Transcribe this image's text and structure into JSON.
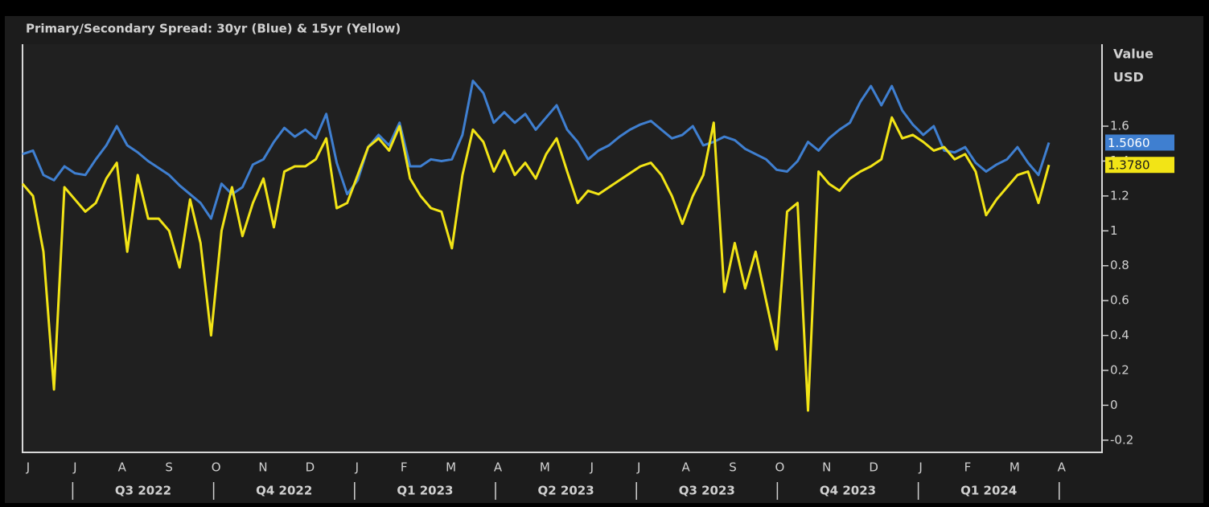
{
  "chart_data": {
    "type": "line",
    "title": "Primary/Secondary Spread: 30yr (Blue) & 15yr (Yellow)",
    "y_axis_label": [
      "Value",
      "USD"
    ],
    "month_labels": [
      "J",
      "J",
      "A",
      "S",
      "O",
      "N",
      "D",
      "J",
      "F",
      "M",
      "A",
      "M",
      "J",
      "J",
      "A",
      "S",
      "O",
      "N",
      "D",
      "J",
      "F",
      "M",
      "A"
    ],
    "quarter_labels": [
      "Q3 2022",
      "Q4 2022",
      "Q1 2023",
      "Q2 2023",
      "Q3 2023",
      "Q4 2023",
      "Q1 2024"
    ],
    "ylim": [
      -0.27,
      2.07
    ],
    "yticks": [
      -0.2,
      0,
      0.2,
      0.4,
      0.6,
      0.8,
      1,
      1.2,
      1.4,
      1.6
    ],
    "grid": false,
    "series": [
      {
        "name": "30yr",
        "color": "#3f7fd0",
        "last_label": "1.5060",
        "values": [
          1.44,
          1.46,
          1.32,
          1.29,
          1.37,
          1.33,
          1.32,
          1.41,
          1.49,
          1.6,
          1.49,
          1.45,
          1.4,
          1.36,
          1.32,
          1.26,
          1.21,
          1.16,
          1.07,
          1.27,
          1.21,
          1.25,
          1.38,
          1.41,
          1.51,
          1.59,
          1.54,
          1.58,
          1.53,
          1.67,
          1.39,
          1.21,
          1.29,
          1.48,
          1.55,
          1.49,
          1.62,
          1.37,
          1.37,
          1.41,
          1.4,
          1.41,
          1.55,
          1.86,
          1.79,
          1.62,
          1.68,
          1.62,
          1.67,
          1.58,
          1.65,
          1.72,
          1.58,
          1.51,
          1.41,
          1.46,
          1.49,
          1.54,
          1.58,
          1.61,
          1.63,
          1.58,
          1.53,
          1.55,
          1.6,
          1.49,
          1.51,
          1.54,
          1.52,
          1.47,
          1.44,
          1.41,
          1.35,
          1.34,
          1.4,
          1.51,
          1.46,
          1.53,
          1.58,
          1.62,
          1.74,
          1.83,
          1.72,
          1.83,
          1.69,
          1.61,
          1.55,
          1.6,
          1.46,
          1.45,
          1.48,
          1.39,
          1.34,
          1.38,
          1.41,
          1.48,
          1.39,
          1.32,
          1.506
        ]
      },
      {
        "name": "15yr",
        "color": "#f2e416",
        "last_label": "1.3780",
        "values": [
          1.27,
          1.2,
          0.88,
          0.09,
          1.25,
          1.18,
          1.11,
          1.16,
          1.3,
          1.39,
          0.88,
          1.32,
          1.07,
          1.07,
          1.0,
          0.79,
          1.18,
          0.93,
          0.4,
          1.0,
          1.25,
          0.97,
          1.16,
          1.3,
          1.02,
          1.34,
          1.37,
          1.37,
          1.41,
          1.53,
          1.13,
          1.16,
          1.32,
          1.48,
          1.53,
          1.46,
          1.6,
          1.3,
          1.2,
          1.13,
          1.11,
          0.9,
          1.32,
          1.58,
          1.51,
          1.34,
          1.46,
          1.32,
          1.39,
          1.3,
          1.44,
          1.53,
          1.34,
          1.16,
          1.23,
          1.21,
          1.25,
          1.29,
          1.33,
          1.37,
          1.39,
          1.32,
          1.2,
          1.04,
          1.2,
          1.32,
          1.62,
          0.65,
          0.93,
          0.67,
          0.88,
          0.6,
          0.32,
          1.11,
          1.16,
          -0.03,
          1.34,
          1.27,
          1.23,
          1.3,
          1.34,
          1.37,
          1.41,
          1.65,
          1.53,
          1.55,
          1.51,
          1.46,
          1.48,
          1.41,
          1.44,
          1.34,
          1.09,
          1.18,
          1.25,
          1.32,
          1.34,
          1.16,
          1.378
        ]
      }
    ]
  }
}
